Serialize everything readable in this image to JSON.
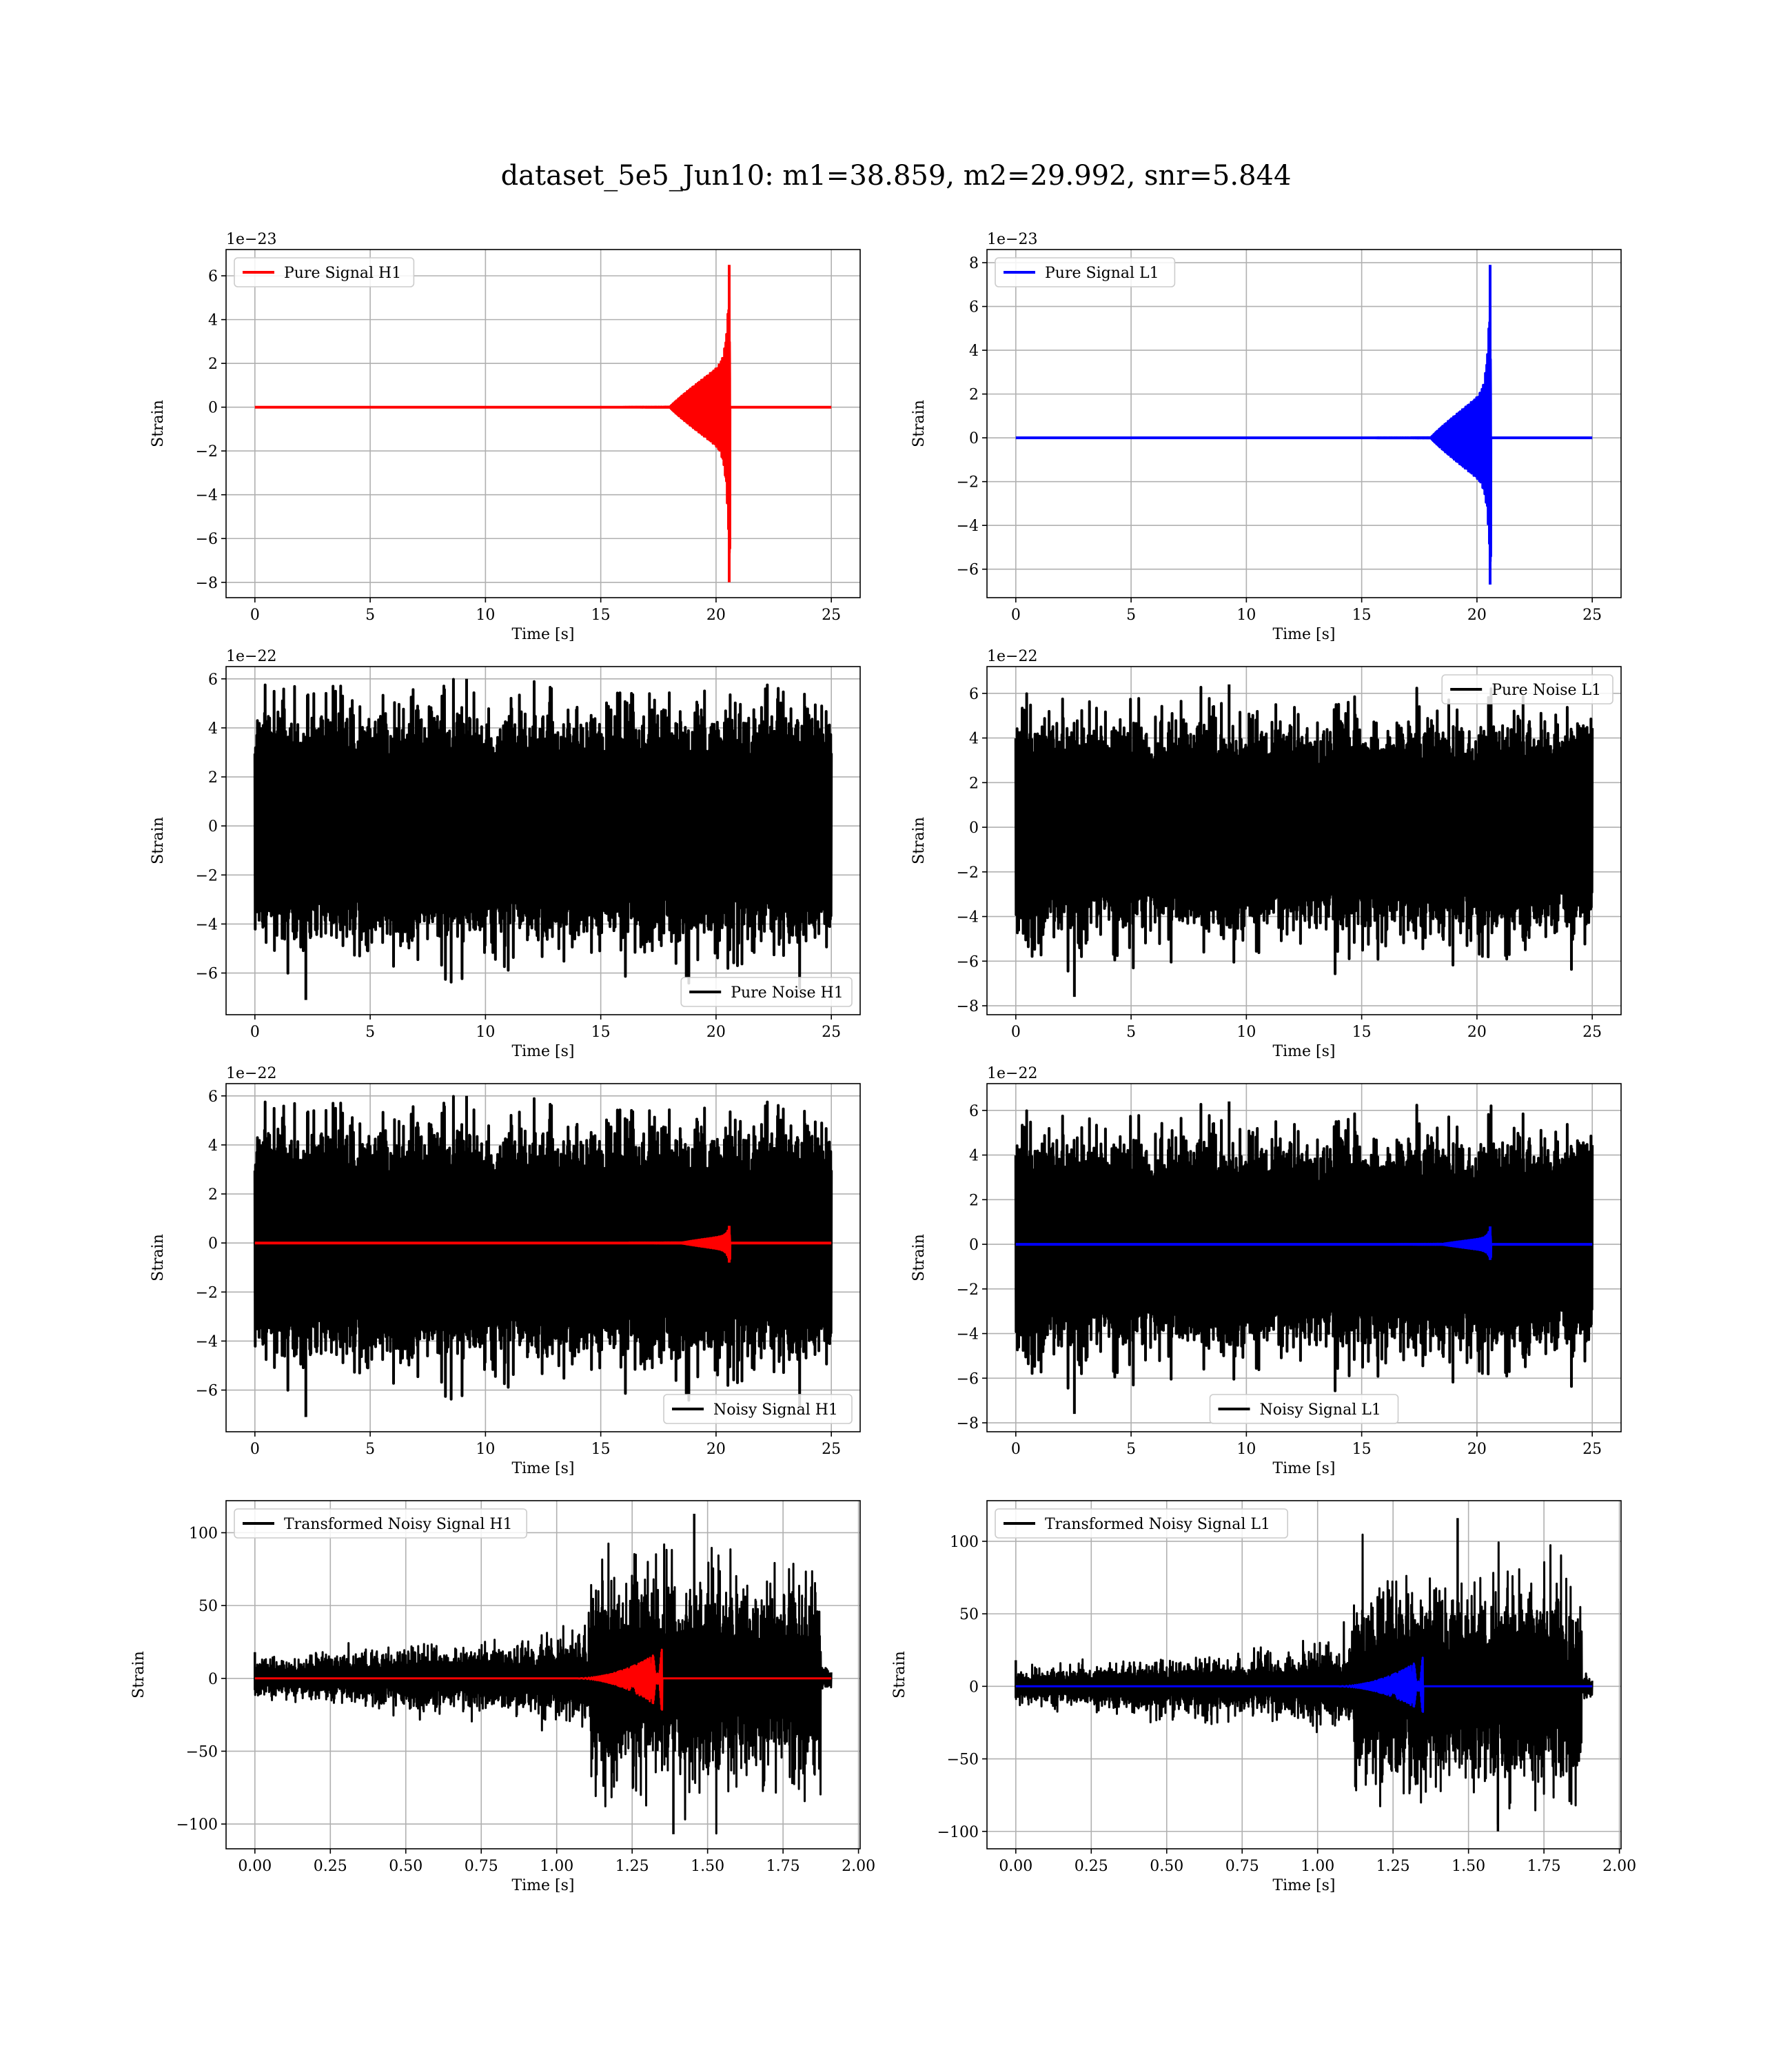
{
  "figure": {
    "title": "dataset_5e5_Jun10: m1=38.859, m2=29.992, snr=5.844"
  },
  "chart_data": [
    {
      "type": "line",
      "id": "pure-signal-h1",
      "variant": "chirp",
      "xlabel": "Time [s]",
      "ylabel": "Strain",
      "xlim": [
        -1.25,
        26.25
      ],
      "ylim": [
        -8.7,
        7.2
      ],
      "xticks": [
        0,
        5,
        10,
        15,
        20,
        25
      ],
      "xtick_labels": [
        "0",
        "5",
        "10",
        "15",
        "20",
        "25"
      ],
      "yticks": [
        -8,
        -6,
        -4,
        -2,
        0,
        2,
        4,
        6
      ],
      "ytick_labels": [
        "−8",
        "−6",
        "−4",
        "−2",
        "0",
        "2",
        "4",
        "6"
      ],
      "y_offset_label": "1e−23",
      "legend": {
        "position": "upper left",
        "entries": [
          {
            "label": "Pure Signal H1",
            "color": "#ff0000"
          }
        ]
      },
      "grid": true,
      "series": [
        {
          "name": "Pure Signal H1",
          "color": "#ff0000",
          "x_range": [
            0,
            25
          ],
          "merger_time": 20.6,
          "onset_time": 18.0,
          "inspiral_max": 2.2,
          "peak_max": 6.5,
          "peak_min": -8.0
        }
      ]
    },
    {
      "type": "line",
      "id": "pure-signal-l1",
      "variant": "chirp",
      "xlabel": "Time [s]",
      "ylabel": "Strain",
      "xlim": [
        -1.25,
        26.25
      ],
      "ylim": [
        -7.3,
        8.6
      ],
      "xticks": [
        0,
        5,
        10,
        15,
        20,
        25
      ],
      "xtick_labels": [
        "0",
        "5",
        "10",
        "15",
        "20",
        "25"
      ],
      "yticks": [
        -6,
        -4,
        -2,
        0,
        2,
        4,
        6,
        8
      ],
      "ytick_labels": [
        "−6",
        "−4",
        "−2",
        "0",
        "2",
        "4",
        "6",
        "8"
      ],
      "y_offset_label": "1e−23",
      "legend": {
        "position": "upper left",
        "entries": [
          {
            "label": "Pure Signal L1",
            "color": "#0000ff"
          }
        ]
      },
      "grid": true,
      "series": [
        {
          "name": "Pure Signal L1",
          "color": "#0000ff",
          "x_range": [
            0,
            25
          ],
          "merger_time": 20.6,
          "onset_time": 18.0,
          "inspiral_max": 2.3,
          "peak_max": 7.9,
          "peak_min": -6.7
        }
      ]
    },
    {
      "type": "line",
      "id": "pure-noise-h1",
      "variant": "noise",
      "xlabel": "Time [s]",
      "ylabel": "Strain",
      "xlim": [
        -1.25,
        26.25
      ],
      "ylim": [
        -7.7,
        6.5
      ],
      "xticks": [
        0,
        5,
        10,
        15,
        20,
        25
      ],
      "xtick_labels": [
        "0",
        "5",
        "10",
        "15",
        "20",
        "25"
      ],
      "yticks": [
        -6,
        -4,
        -2,
        0,
        2,
        4,
        6
      ],
      "ytick_labels": [
        "−6",
        "−4",
        "−2",
        "0",
        "2",
        "4",
        "6"
      ],
      "y_offset_label": "1e−22",
      "legend": {
        "position": "lower right",
        "entries": [
          {
            "label": "Pure Noise H1",
            "color": "#000000"
          }
        ]
      },
      "grid": true,
      "series": [
        {
          "name": "Pure Noise H1",
          "color": "#000000",
          "x_range": [
            0,
            25
          ],
          "max": 6.0,
          "min": -7.1,
          "seed": 11
        }
      ]
    },
    {
      "type": "line",
      "id": "pure-noise-l1",
      "variant": "noise",
      "xlabel": "Time [s]",
      "ylabel": "Strain",
      "xlim": [
        -1.25,
        26.25
      ],
      "ylim": [
        -8.4,
        7.2
      ],
      "xticks": [
        0,
        5,
        10,
        15,
        20,
        25
      ],
      "xtick_labels": [
        "0",
        "5",
        "10",
        "15",
        "20",
        "25"
      ],
      "yticks": [
        -8,
        -6,
        -4,
        -2,
        0,
        2,
        4,
        6
      ],
      "ytick_labels": [
        "−8",
        "−6",
        "−4",
        "−2",
        "0",
        "2",
        "4",
        "6"
      ],
      "y_offset_label": "1e−22",
      "legend": {
        "position": "upper right",
        "entries": [
          {
            "label": "Pure Noise L1",
            "color": "#000000"
          }
        ]
      },
      "grid": true,
      "series": [
        {
          "name": "Pure Noise L1",
          "color": "#000000",
          "x_range": [
            0,
            25
          ],
          "max": 6.4,
          "min": -7.6,
          "seed": 23
        }
      ]
    },
    {
      "type": "line",
      "id": "noisy-signal-h1",
      "variant": "noisy",
      "xlabel": "Time [s]",
      "ylabel": "Strain",
      "xlim": [
        -1.25,
        26.25
      ],
      "ylim": [
        -7.7,
        6.5
      ],
      "xticks": [
        0,
        5,
        10,
        15,
        20,
        25
      ],
      "xtick_labels": [
        "0",
        "5",
        "10",
        "15",
        "20",
        "25"
      ],
      "yticks": [
        -6,
        -4,
        -2,
        0,
        2,
        4,
        6
      ],
      "ytick_labels": [
        "−6",
        "−4",
        "−2",
        "0",
        "2",
        "4",
        "6"
      ],
      "y_offset_label": "1e−22",
      "legend": {
        "position": "lower right",
        "entries": [
          {
            "label": "Noisy Signal H1",
            "color": "#000000"
          }
        ]
      },
      "grid": true,
      "series": [
        {
          "name": "Noisy Signal H1",
          "color": "#000000",
          "x_range": [
            0,
            25
          ],
          "max": 6.0,
          "min": -7.1,
          "seed": 11
        },
        {
          "color": "#ff0000",
          "x_range": [
            0,
            25
          ],
          "merger_time": 20.6,
          "onset_time": 18.5,
          "inspiral_max": 0.3,
          "peak_max": 0.7,
          "peak_min": -0.8
        }
      ]
    },
    {
      "type": "line",
      "id": "noisy-signal-l1",
      "variant": "noisy",
      "xlabel": "Time [s]",
      "ylabel": "Strain",
      "xlim": [
        -1.25,
        26.25
      ],
      "ylim": [
        -8.4,
        7.2
      ],
      "xticks": [
        0,
        5,
        10,
        15,
        20,
        25
      ],
      "xtick_labels": [
        "0",
        "5",
        "10",
        "15",
        "20",
        "25"
      ],
      "yticks": [
        -8,
        -6,
        -4,
        -2,
        0,
        2,
        4,
        6
      ],
      "ytick_labels": [
        "−8",
        "−6",
        "−4",
        "−2",
        "0",
        "2",
        "4",
        "6"
      ],
      "y_offset_label": "1e−22",
      "legend": {
        "position": "lower center",
        "entries": [
          {
            "label": "Noisy Signal L1",
            "color": "#000000"
          }
        ]
      },
      "grid": true,
      "series": [
        {
          "name": "Noisy Signal L1",
          "color": "#000000",
          "x_range": [
            0,
            25
          ],
          "max": 6.4,
          "min": -7.6,
          "seed": 23
        },
        {
          "color": "#0000ff",
          "x_range": [
            0,
            25
          ],
          "merger_time": 20.6,
          "onset_time": 18.5,
          "inspiral_max": 0.3,
          "peak_max": 0.8,
          "peak_min": -0.7
        }
      ]
    },
    {
      "type": "line",
      "id": "transformed-noisy-signal-h1",
      "variant": "transformed",
      "xlabel": "Time [s]",
      "ylabel": "Strain",
      "xlim": [
        -0.0955,
        2.0055
      ],
      "ylim": [
        -117,
        122
      ],
      "xticks": [
        0.0,
        0.25,
        0.5,
        0.75,
        1.0,
        1.25,
        1.5,
        1.75,
        2.0
      ],
      "xtick_labels": [
        "0.00",
        "0.25",
        "0.50",
        "0.75",
        "1.00",
        "1.25",
        "1.50",
        "1.75",
        "2.00"
      ],
      "yticks": [
        -100,
        -50,
        0,
        50,
        100
      ],
      "ytick_labels": [
        "−100",
        "−50",
        "0",
        "50",
        "100"
      ],
      "y_offset_label": "",
      "legend": {
        "position": "upper left",
        "entries": [
          {
            "label": "Transformed Noisy Signal H1",
            "color": "#000000"
          }
        ]
      },
      "grid": true,
      "series": [
        {
          "name": "Transformed Noisy Signal H1",
          "color": "#000000",
          "x_range": [
            0,
            1.91
          ],
          "max": 113,
          "min": -107,
          "loud_start": 1.11,
          "loud_end": 1.875,
          "quiet_amp": 14,
          "loud_amp": 45,
          "seed": 37
        },
        {
          "color": "#ff0000",
          "x_range": [
            0,
            1.91
          ],
          "merger_time": 1.35,
          "onset_time": 1.05,
          "peak_max": 20,
          "peak_min": -22
        }
      ]
    },
    {
      "type": "line",
      "id": "transformed-noisy-signal-l1",
      "variant": "transformed",
      "xlabel": "Time [s]",
      "ylabel": "Strain",
      "xlim": [
        -0.0955,
        2.0055
      ],
      "ylim": [
        -112,
        128
      ],
      "xticks": [
        0.0,
        0.25,
        0.5,
        0.75,
        1.0,
        1.25,
        1.5,
        1.75,
        2.0
      ],
      "xtick_labels": [
        "0.00",
        "0.25",
        "0.50",
        "0.75",
        "1.00",
        "1.25",
        "1.50",
        "1.75",
        "2.00"
      ],
      "yticks": [
        -100,
        -50,
        0,
        50,
        100
      ],
      "ytick_labels": [
        "−100",
        "−50",
        "0",
        "50",
        "100"
      ],
      "y_offset_label": "",
      "legend": {
        "position": "upper left",
        "entries": [
          {
            "label": "Transformed Noisy Signal L1",
            "color": "#000000"
          }
        ]
      },
      "grid": true,
      "series": [
        {
          "name": "Transformed Noisy Signal L1",
          "color": "#000000",
          "x_range": [
            0,
            1.91
          ],
          "max": 116,
          "min": -100,
          "loud_start": 1.12,
          "loud_end": 1.875,
          "quiet_amp": 13,
          "loud_amp": 45,
          "seed": 53
        },
        {
          "color": "#0000ff",
          "x_range": [
            0,
            1.91
          ],
          "merger_time": 1.35,
          "onset_time": 1.05,
          "peak_max": 20,
          "peak_min": -18
        }
      ]
    }
  ]
}
